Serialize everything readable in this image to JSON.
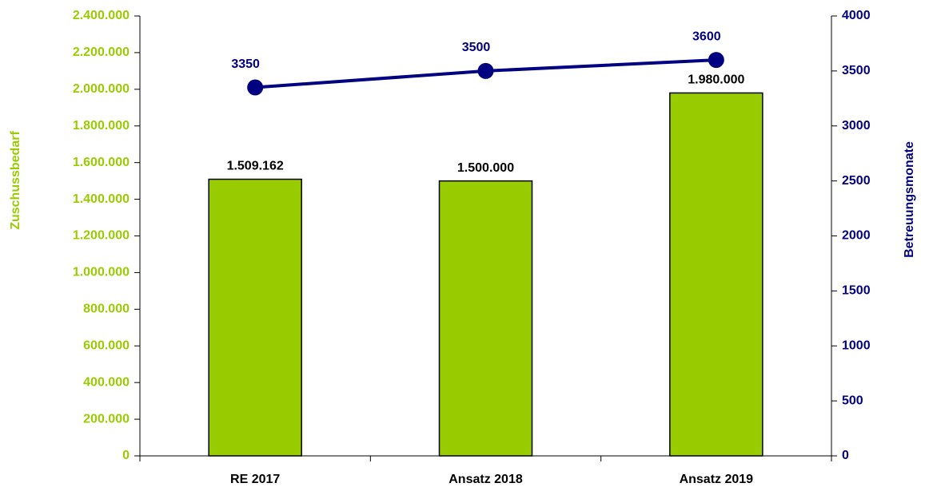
{
  "chart_data": {
    "type": "bar",
    "categories": [
      "RE 2017",
      "Ansatz 2018",
      "Ansatz 2019"
    ],
    "ylabel": "Zuschussbedarf",
    "y2label": "Betreuungsmonate",
    "ylim": [
      0,
      2400000
    ],
    "yticks": [
      0,
      {
        "value": 200000,
        "label": "200.000"
      },
      {
        "value": 400000,
        "label": "400.000"
      },
      {
        "value": 600000,
        "label": "600.000"
      },
      {
        "value": 800000,
        "label": "800.000"
      },
      {
        "value": 1000000,
        "label": "1.000.000"
      },
      {
        "value": 1200000,
        "label": "1.200.000"
      },
      {
        "value": 1400000,
        "label": "1.400.000"
      },
      {
        "value": 1600000,
        "label": "1.600.000"
      },
      {
        "value": 1800000,
        "label": "1.800.000"
      },
      {
        "value": 2000000,
        "label": "2.000.000"
      },
      {
        "value": 2200000,
        "label": "2.200.000"
      },
      {
        "value": 2400000,
        "label": "2.400.000"
      }
    ],
    "y2lim": [
      0,
      4000
    ],
    "y2ticks": [
      0,
      500,
      1000,
      1500,
      2000,
      2500,
      3000,
      3500,
      4000
    ],
    "ycolor": "#99cc00",
    "y2color": "#000080",
    "series": [
      {
        "type": "bar",
        "color": "#99cc00",
        "values": [
          1509162,
          1500000,
          1980000
        ],
        "value_labels": [
          "1.509.162",
          "1.500.000",
          "1.980.000"
        ]
      },
      {
        "type": "line",
        "axis": "y2",
        "color": "#000080",
        "values": [
          3350,
          3500,
          3600
        ]
      }
    ]
  }
}
